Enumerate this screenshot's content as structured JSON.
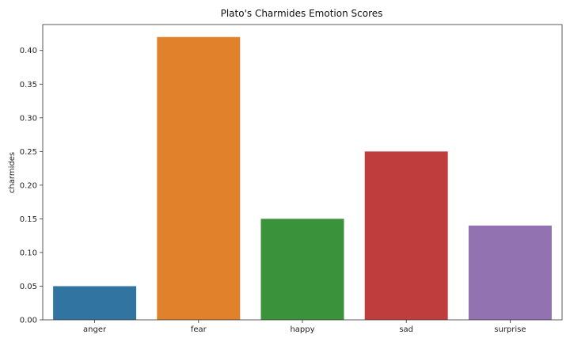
{
  "chart_data": {
    "type": "bar",
    "title": "Plato's Charmides Emotion Scores",
    "xlabel": "",
    "ylabel": "charmides",
    "categories": [
      "anger",
      "fear",
      "happy",
      "sad",
      "surprise"
    ],
    "values": [
      0.05,
      0.42,
      0.15,
      0.25,
      0.14
    ],
    "colors": [
      "#3274a1",
      "#e1812c",
      "#3a923a",
      "#c03d3e",
      "#9372b2"
    ],
    "ylim": [
      0,
      0.4385
    ],
    "yticks": [
      0.0,
      0.05,
      0.1,
      0.15,
      0.2,
      0.25,
      0.3,
      0.35,
      0.4
    ],
    "ytick_labels": [
      "0.00",
      "0.05",
      "0.10",
      "0.15",
      "0.20",
      "0.25",
      "0.30",
      "0.35",
      "0.40"
    ],
    "grid": false,
    "legend": false
  }
}
